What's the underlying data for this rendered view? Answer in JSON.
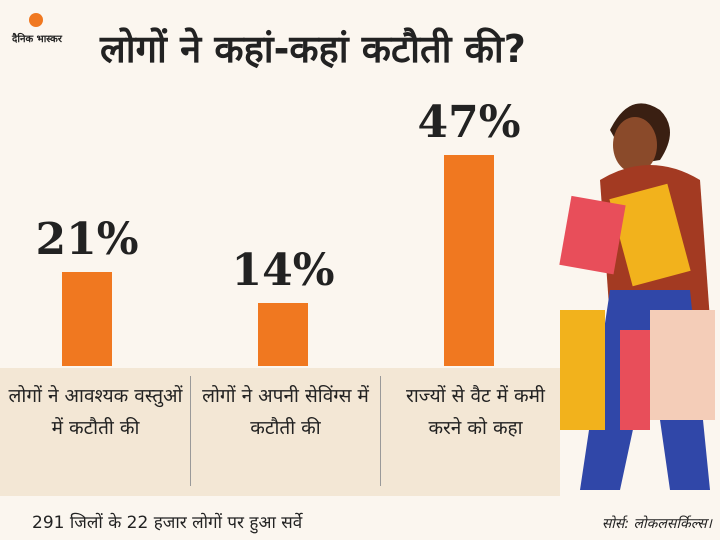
{
  "logo": "दैनिक भास्कर",
  "chart_data": {
    "type": "bar",
    "title": "लोगों ने कहां-कहां कटौती की?",
    "categories": [
      "लोगों ने आवश्यक वस्तुओं में कटौती की",
      "लोगों ने अपनी सेविंग्स में कटौती की",
      "राज्यों से वैट में कमी करने को कहा"
    ],
    "values": [
      21,
      14,
      47
    ],
    "value_labels": [
      "21%",
      "14%",
      "47%"
    ],
    "color": "#f07820",
    "note": "291 जिलों के 22 हजार लोगों पर हुआ सर्वे",
    "source": "सोर्स: लोकलसर्किल्स।"
  }
}
